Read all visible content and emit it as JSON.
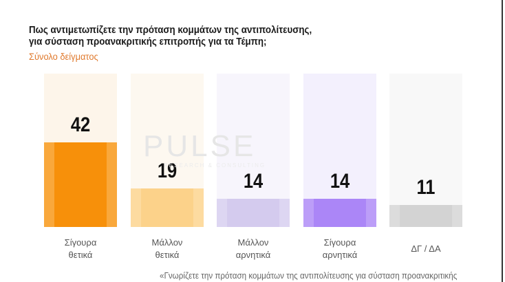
{
  "title_line1": "Πως αντιμετωπίζετε την πρόταση κομμάτων της αντιπολίτευσης,",
  "title_line2": "για σύσταση προανακριτικής επιτροπής για τα Τέμπη;",
  "subtitle": "Σύνολο δείγματος",
  "watermark": "PULSE",
  "watermark_sub": "RESEARCH & CONSULTING",
  "footnote": "«Γνωρίζετε την πρόταση κομμάτων της αντιπολίτευσης για σύσταση προανακριτικής",
  "chart_data": {
    "type": "bar",
    "categories": [
      "Σίγουρα θετικά",
      "Μάλλον θετικά",
      "Μάλλον αρνητικά",
      "Σίγουρα αρνητικά",
      "ΔΓ / ΔΑ"
    ],
    "category_lines": [
      [
        "Σίγουρα",
        "θετικά"
      ],
      [
        "Μάλλον",
        "θετικά"
      ],
      [
        "Μάλλον",
        "αρνητικά"
      ],
      [
        "Σίγουρα",
        "αρνητικά"
      ],
      [
        "ΔΓ / ΔΑ"
      ]
    ],
    "values": [
      42,
      19,
      14,
      14,
      11
    ],
    "colors": [
      "#f7900a",
      "#fcd28a",
      "#d4cbee",
      "#ab86f7",
      "#d3d3d3"
    ],
    "edge_colors": [
      "#f9a83c",
      "#fddba0",
      "#ddd6f2",
      "#bc9ef8",
      "#dcdcdc"
    ],
    "bg_colors": [
      "#fdf5ea",
      "#fdf8f0",
      "#f7f5fc",
      "#f3f0fd",
      "#f8f8f8"
    ],
    "grid": false
  }
}
